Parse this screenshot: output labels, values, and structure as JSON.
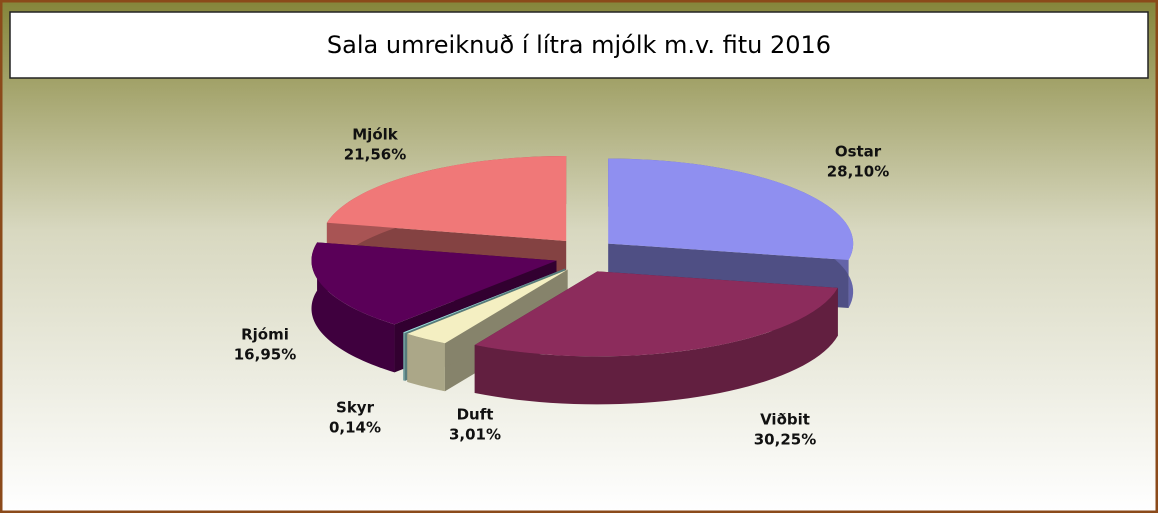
{
  "chart_data": {
    "type": "pie",
    "title": "Sala umreiknuð í lítra mjólk m.v. fitu 2016",
    "categories": [
      "Ostar",
      "Viðbit",
      "Duft",
      "Skyr",
      "Rjómi",
      "Mjólk"
    ],
    "values": [
      28.1,
      30.25,
      3.01,
      0.14,
      16.95,
      21.56
    ],
    "value_labels": [
      "28,10%",
      "30,25%",
      "3,01%",
      "0,14%",
      "16,95%",
      "21,56%"
    ],
    "colors": [
      "#8f8ff0",
      "#8c2c5c",
      "#f4efc2",
      "#9ee0e0",
      "#5a0058",
      "#f07878"
    ]
  }
}
